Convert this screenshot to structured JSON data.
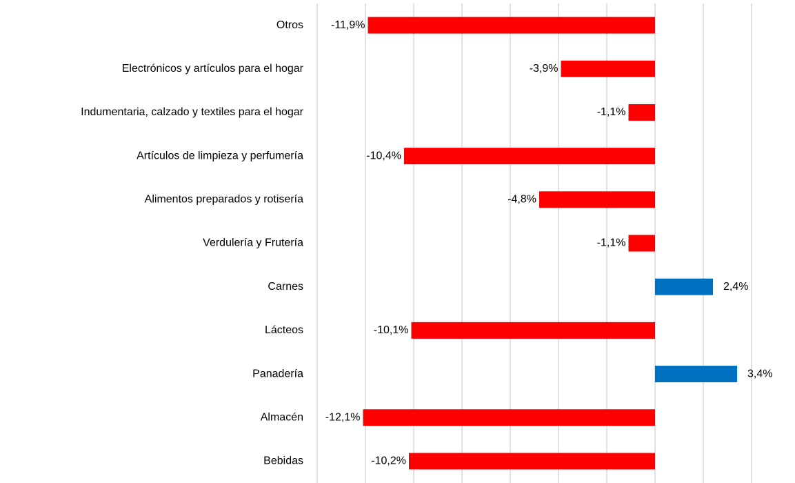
{
  "chart_data": {
    "type": "barh",
    "categories": [
      "Otros",
      "Electrónicos y artículos para el hogar",
      "Indumentaria, calzado y textiles para el hogar",
      "Artículos de limpieza y perfumería",
      "Alimentos preparados y rotisería",
      "Verdulería y Frutería",
      "Carnes",
      "Lácteos",
      "Panadería",
      "Almacén",
      "Bebidas"
    ],
    "values": [
      -11.9,
      -3.9,
      -1.1,
      -10.4,
      -4.8,
      -1.1,
      2.4,
      -10.1,
      3.4,
      -12.1,
      -10.2
    ],
    "value_labels": [
      "-11,9%",
      "-3,9%",
      "-1,1%",
      "-10,4%",
      "-4,8%",
      "-1,1%",
      "2,4%",
      "-10,1%",
      "3,4%",
      "-12,1%",
      "-10,2%"
    ],
    "colors": [
      "#ff0000",
      "#ff0000",
      "#ff0000",
      "#ff0000",
      "#ff0000",
      "#ff0000",
      "#0070c0",
      "#ff0000",
      "#0070c0",
      "#ff0000",
      "#ff0000"
    ],
    "xlim": [
      -14,
      4
    ],
    "xticks": [
      -14,
      -12,
      -10,
      -8,
      -6,
      -4,
      -2,
      0,
      2,
      4
    ],
    "show_tick_labels": false,
    "grid": true
  }
}
